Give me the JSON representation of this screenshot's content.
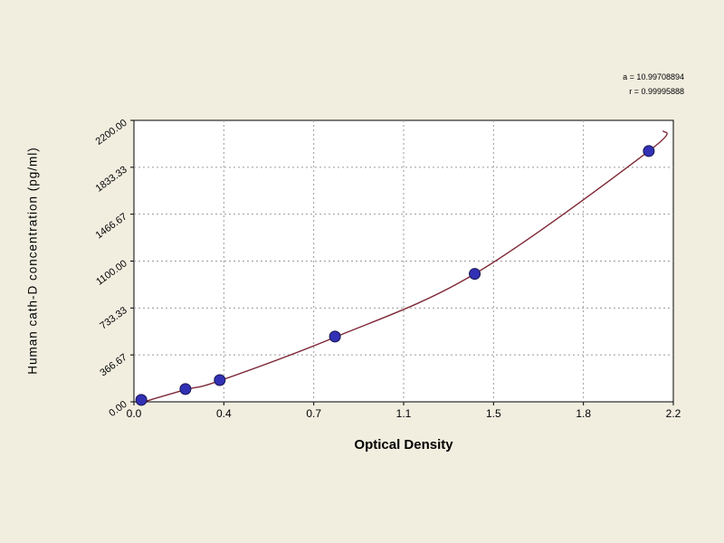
{
  "page": {
    "background": "#f1eee0"
  },
  "annotations": {
    "a": "a = 10.99708894",
    "r": "r = 0.99995888"
  },
  "chart_data": {
    "type": "scatter",
    "title": "",
    "xlabel": "Optical Density",
    "ylabel": "Human cath-D concentration (pg/ml)",
    "xlim": [
      0,
      2.2
    ],
    "ylim": [
      0,
      2200
    ],
    "x_tick_labels": [
      "0.0",
      "0.4",
      "0.7",
      "1.1",
      "1.5",
      "1.8",
      "2.2"
    ],
    "y_tick_labels": [
      "0.00",
      "366.67",
      "733.33",
      "1100.00",
      "1466.67",
      "1833.33",
      "2200.00"
    ],
    "grid": true,
    "grid_color": "#9a9a9a",
    "plot_bg": "#ffffff",
    "plot_border": "#000000",
    "curve_color": "#7e2937",
    "point_color": "#3230b4",
    "point_stroke": "#17154f",
    "points": [
      {
        "x": 0.03,
        "y": 15
      },
      {
        "x": 0.21,
        "y": 100
      },
      {
        "x": 0.35,
        "y": 170
      },
      {
        "x": 0.82,
        "y": 510
      },
      {
        "x": 1.39,
        "y": 1000
      },
      {
        "x": 2.1,
        "y": 1960
      }
    ],
    "curve": [
      [
        0.04,
        0
      ],
      [
        0.21,
        95
      ],
      [
        0.35,
        165
      ],
      [
        0.82,
        505
      ],
      [
        1.39,
        1000
      ],
      [
        2.1,
        1960
      ],
      [
        2.16,
        2120
      ]
    ]
  }
}
